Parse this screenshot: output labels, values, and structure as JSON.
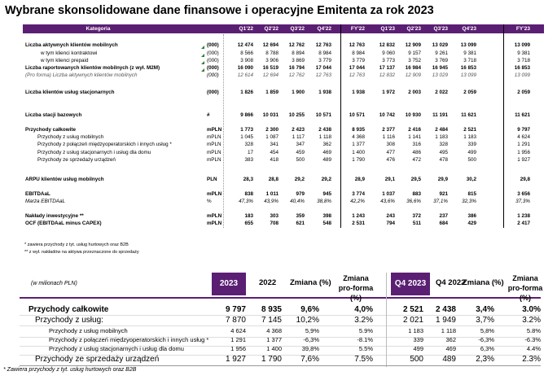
{
  "title": "Wybrane skonsolidowane dane finansowe i operacyjne Emitenta za rok 2023",
  "colors": {
    "header": "#5a1f73",
    "green_marker": "#2e7d32"
  },
  "top_table": {
    "category_header": "Kategoria",
    "columns": [
      "Q1'22",
      "Q2'22",
      "Q3'22",
      "Q4'22",
      "FY'22",
      "Q1'23",
      "Q2'23",
      "Q3'23",
      "Q4'23",
      "FY'23"
    ],
    "rows": [
      {
        "label": "Liczba aktywnych klientów mobilnych",
        "unit": "(000)",
        "values": [
          "12 474",
          "12 694",
          "12 762",
          "12 763",
          "12 763",
          "12 832",
          "12 909",
          "13 029",
          "13 099",
          "13 099"
        ],
        "style": "bold"
      },
      {
        "label": "w tym klienci kontraktowi",
        "unit": "(000)",
        "values": [
          "8 566",
          "8 788",
          "8 894",
          "8 984",
          "8 984",
          "9 060",
          "9 157",
          "9 261",
          "9 381",
          "9 381"
        ],
        "style": "indent"
      },
      {
        "label": "w tym klienci prepaid",
        "unit": "(000)",
        "values": [
          "3 908",
          "3 906",
          "3 869",
          "3 779",
          "3 779",
          "3 773",
          "3 752",
          "3 769",
          "3 718",
          "3 718"
        ],
        "style": "indent"
      },
      {
        "label": "Liczba raportowanych klientów mobilnych (z wył. M2M)",
        "unit": "(000)",
        "values": [
          "16 090",
          "16 519",
          "16 794",
          "17 044",
          "17 044",
          "17 137",
          "16 984",
          "16 945",
          "16 853",
          "16 853"
        ],
        "style": "bold"
      },
      {
        "label": "(Pro forma) Liczba aktywnych klientów mobilnych",
        "unit": "(000)",
        "values": [
          "12 614",
          "12 694",
          "12 762",
          "12 763",
          "12 763",
          "12 832",
          "12 909",
          "13 029",
          "13 099",
          "13 099"
        ],
        "style": "ital"
      },
      {
        "label": "Liczba klientów usług stacjonarnych",
        "unit": "(000)",
        "values": [
          "1 826",
          "1 859",
          "1 900",
          "1 938",
          "1 938",
          "1 972",
          "2 003",
          "2 022",
          "2 059",
          "2 059"
        ],
        "style": "bold"
      },
      {
        "label": "Liczba stacji bazowych",
        "unit": "#",
        "values": [
          "9 866",
          "10 031",
          "10 255",
          "10 571",
          "10 571",
          "10 742",
          "10 930",
          "11 191",
          "11 621",
          "11 621"
        ],
        "style": "bold"
      },
      {
        "label": "Przychody całkowite",
        "unit": "mPLN",
        "values": [
          "1 773",
          "2 300",
          "2 423",
          "2 438",
          "8 935",
          "2 377",
          "2 416",
          "2 484",
          "2 521",
          "9 797"
        ],
        "style": "bold"
      },
      {
        "label": "Przychody z usług mobilnych",
        "unit": "mPLN",
        "values": [
          "1 045",
          "1 087",
          "1 117",
          "1 118",
          "4 368",
          "1 116",
          "1 141",
          "1 183",
          "1 183",
          "4 624"
        ],
        "style": "indent"
      },
      {
        "label": "Przychody z połączeń międzyoperatorskich i innych usług *",
        "unit": "mPLN",
        "values": [
          "328",
          "341",
          "347",
          "362",
          "1 377",
          "308",
          "316",
          "328",
          "339",
          "1 291"
        ],
        "style": "indent"
      },
      {
        "label": "Przychody z usług stacjonarnych i usług dla domu",
        "unit": "mPLN",
        "values": [
          "17",
          "454",
          "459",
          "469",
          "1 400",
          "477",
          "486",
          "495",
          "499",
          "1 956"
        ],
        "style": "indent"
      },
      {
        "label": "Przychody ze sprzedaży urządzeń",
        "unit": "mPLN",
        "values": [
          "383",
          "418",
          "500",
          "489",
          "1 790",
          "476",
          "472",
          "478",
          "500",
          "1 927"
        ],
        "style": "indent"
      },
      {
        "label": "ARPU klientów usług mobilnych",
        "unit": "PLN",
        "values": [
          "28,3",
          "28,8",
          "29,2",
          "29,2",
          "28,9",
          "29,1",
          "29,5",
          "29,9",
          "30,2",
          "29,8"
        ],
        "style": "bold"
      },
      {
        "label": "EBITDAaL",
        "unit": "mPLN",
        "values": [
          "838",
          "1 011",
          "979",
          "945",
          "3 774",
          "1 037",
          "883",
          "921",
          "815",
          "3 656"
        ],
        "style": "bold"
      },
      {
        "label": "Marża EBITDAaL",
        "unit": "%",
        "values": [
          "47,3%",
          "43,9%",
          "40,4%",
          "38,8%",
          "42,2%",
          "43,6%",
          "36,6%",
          "37,1%",
          "32,3%",
          "37,3%"
        ],
        "style": "italplain"
      },
      {
        "label": "Nakłady inwestycyjne **",
        "unit": "mPLN",
        "values": [
          "183",
          "303",
          "359",
          "398",
          "1 243",
          "243",
          "372",
          "237",
          "386",
          "1 238"
        ],
        "style": "bold"
      },
      {
        "label": "OCF (EBITDAaL minus CAPEX)",
        "unit": "mPLN",
        "values": [
          "655",
          "708",
          "621",
          "548",
          "2 531",
          "794",
          "511",
          "684",
          "429",
          "2 417"
        ],
        "style": "bold"
      }
    ],
    "notes": [
      "* zawiera przychody z tyt. usług hurtowych oraz B2B",
      "** z wył. nakładów na aktywa przeznaczone do sprzedaży"
    ]
  },
  "bottom_table": {
    "unit_label": "(w milionach PLN)",
    "headers": {
      "y2023": "2023",
      "y2022": "2022",
      "zmiana": "Zmiana (%)",
      "zmiana_pf": "Zmiana pro-forma (%)",
      "q4_2023": "Q4 2023",
      "q4_2022": "Q4 2022",
      "zmiana_q": "Zmiana (%)",
      "zmiana_pf_q": "Zmiana pro-forma (%)"
    },
    "rows": [
      {
        "label": "Przychody całkowite",
        "values": [
          "9 797",
          "8 935",
          "9,6%",
          "4,0%",
          "2 521",
          "2 438",
          "3,4%",
          "3.0%"
        ],
        "style": "bold"
      },
      {
        "label": "Przychody z usług:",
        "values": [
          "7 870",
          "7 145",
          "10,2%",
          "3.2%",
          "2 021",
          "1 949",
          "3,7%",
          "3.2%"
        ],
        "style": "l1"
      },
      {
        "label": "Przychody z usług mobilnych",
        "values": [
          "4 624",
          "4 368",
          "5,9%",
          "5.9%",
          "1 183",
          "1 118",
          "5,8%",
          "5.8%"
        ],
        "style": "l2"
      },
      {
        "label": "Przychody z połączeń międzyoperatorskich i innych usług *",
        "values": [
          "1 291",
          "1 377",
          "-6,3%",
          "-8.1%",
          "339",
          "362",
          "-6,3%",
          "-6.3%"
        ],
        "style": "l2"
      },
      {
        "label": "Przychody z usług stacjonarnych i usług dla domu",
        "values": [
          "1 956",
          "1 400",
          "39,8%",
          "5.5%",
          "499",
          "469",
          "6,3%",
          "4.4%"
        ],
        "style": "l2"
      },
      {
        "label": "Przychody ze sprzedaży urządzeń",
        "values": [
          "1 927",
          "1 790",
          "7,6%",
          "7.5%",
          "500",
          "489",
          "2,3%",
          "2.3%"
        ],
        "style": "l1"
      }
    ],
    "footnote": "* Zawiera przychody z tyt. usług hurtowych oraz B2B"
  }
}
